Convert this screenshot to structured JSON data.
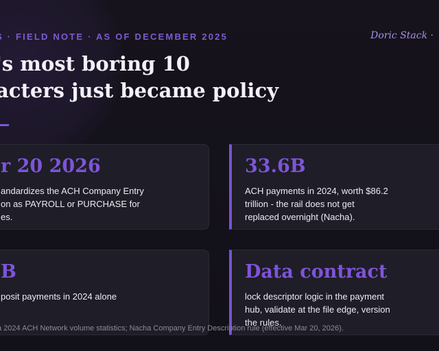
{
  "header": {
    "kicker": "S · FIELD NOTE · AS OF DECEMBER 2025",
    "author": "Doric Stack ·",
    "headline_line1": "'s most boring 10",
    "headline_line2": "acters just became policy"
  },
  "cards": [
    {
      "title": "r 20 2026",
      "body": [
        "andardizes the ACH Company Entry",
        "on as PAYROLL or PURCHASE for",
        "es."
      ]
    },
    {
      "title": "33.6B",
      "body": [
        "ACH payments in 2024, worth $86.2",
        "trillion - the rail does not get",
        "replaced overnight (Nacha)."
      ]
    },
    {
      "title": "B",
      "body": [
        "posit payments in 2024 alone"
      ]
    },
    {
      "title": "Data contract",
      "body": [
        "lock descriptor logic in the payment",
        "hub, validate at the file edge, version",
        "the rules."
      ]
    }
  ],
  "footnote": "a 2024 ACH Network volume statistics; Nacha Company Entry Description rule (effective Mar 20, 2026).",
  "colors": {
    "background": "#141219",
    "accent": "#7d55d8",
    "kicker": "#7e5bd0",
    "card": "#1f1d27"
  }
}
